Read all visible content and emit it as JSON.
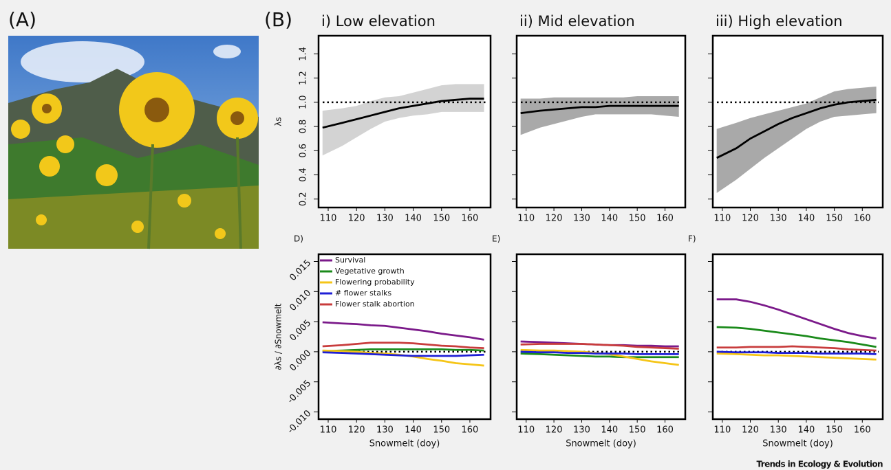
{
  "figure": {
    "label_a": "(A)",
    "label_b": "(B)",
    "credit": "Trends in Ecology & Evolution"
  },
  "chart_data": [
    {
      "type": "line",
      "title": "i) Low elevation",
      "ylabel": "λs",
      "x": [
        108,
        115,
        120,
        125,
        130,
        135,
        140,
        145,
        150,
        155,
        160,
        165
      ],
      "series": [
        {
          "color": "#000000",
          "values": [
            0.79,
            0.83,
            0.86,
            0.89,
            0.92,
            0.95,
            0.97,
            0.99,
            1.01,
            1.02,
            1.03,
            1.03
          ]
        }
      ],
      "band": {
        "color": "#d3d3d3",
        "lower": [
          0.56,
          0.64,
          0.71,
          0.78,
          0.84,
          0.87,
          0.89,
          0.9,
          0.92,
          0.92,
          0.92,
          0.92
        ],
        "upper": [
          0.93,
          0.95,
          0.97,
          1.01,
          1.04,
          1.05,
          1.08,
          1.11,
          1.14,
          1.15,
          1.15,
          1.15
        ]
      },
      "reference": 1,
      "xlim": [
        106.6,
        167.3
      ],
      "xticks": [
        110,
        120,
        130,
        140,
        150,
        160
      ],
      "ylim": [
        0.13,
        1.55
      ],
      "yticks": [
        0.2,
        0.4,
        0.6,
        0.8,
        {
          "value": 1,
          "label": "1.0"
        },
        1.2,
        1.4
      ],
      "show_ytick_labels": true
    },
    {
      "type": "line",
      "title": "ii) Mid elevation",
      "x": [
        108,
        115,
        120,
        125,
        130,
        135,
        140,
        145,
        150,
        155,
        160,
        165
      ],
      "series": [
        {
          "color": "#000000",
          "values": [
            0.91,
            0.93,
            0.94,
            0.95,
            0.96,
            0.96,
            0.97,
            0.97,
            0.97,
            0.97,
            0.97,
            0.97
          ]
        }
      ],
      "band": {
        "color": "#a9a9a9",
        "lower": [
          0.73,
          0.79,
          0.82,
          0.85,
          0.88,
          0.9,
          0.9,
          0.9,
          0.9,
          0.9,
          0.89,
          0.88
        ],
        "upper": [
          1.03,
          1.03,
          1.04,
          1.04,
          1.04,
          1.04,
          1.04,
          1.04,
          1.05,
          1.05,
          1.05,
          1.05
        ]
      },
      "reference": 1,
      "xlim": [
        106.6,
        167.3
      ],
      "xticks": [
        110,
        120,
        130,
        140,
        150,
        160
      ],
      "ylim": [
        0.13,
        1.55
      ],
      "yticks": [
        0.2,
        0.4,
        0.6,
        0.8,
        {
          "value": 1,
          "label": "1.0"
        },
        1.2,
        1.4
      ],
      "show_ytick_labels": false
    },
    {
      "type": "line",
      "title": "iii) High elevation",
      "x": [
        108,
        115,
        120,
        125,
        130,
        135,
        140,
        145,
        150,
        155,
        160,
        165
      ],
      "series": [
        {
          "color": "#000000",
          "values": [
            0.54,
            0.62,
            0.7,
            0.76,
            0.82,
            0.87,
            0.91,
            0.95,
            0.98,
            1.0,
            1.01,
            1.02
          ]
        }
      ],
      "band": {
        "color": "#a9a9a9",
        "lower": [
          0.25,
          0.36,
          0.45,
          0.54,
          0.62,
          0.7,
          0.78,
          0.84,
          0.88,
          0.89,
          0.9,
          0.91
        ],
        "upper": [
          0.78,
          0.83,
          0.87,
          0.9,
          0.93,
          0.96,
          0.99,
          1.04,
          1.09,
          1.11,
          1.12,
          1.13
        ]
      },
      "reference": 1,
      "xlim": [
        106.6,
        167.3
      ],
      "xticks": [
        110,
        120,
        130,
        140,
        150,
        160
      ],
      "ylim": [
        0.13,
        1.55
      ],
      "yticks": [
        0.2,
        0.4,
        0.6,
        0.8,
        {
          "value": 1,
          "label": "1.0"
        },
        1.2,
        1.4
      ],
      "show_ytick_labels": false
    },
    {
      "type": "line",
      "panel_label": "D)",
      "ylabel": "∂λs / ∂Snowmelt",
      "xlabel": "Snowmelt (doy)",
      "legend": "top-left",
      "x": [
        108,
        115,
        120,
        125,
        130,
        135,
        140,
        145,
        150,
        155,
        160,
        165
      ],
      "series": [
        {
          "name": "Survival",
          "color": "#7b1a8a",
          "values": [
            0.0049,
            0.0047,
            0.0046,
            0.0044,
            0.0043,
            0.004,
            0.0037,
            0.0034,
            0.003,
            0.0027,
            0.0024,
            0.002
          ]
        },
        {
          "name": "Vegetative growth",
          "color": "#1a8a1a",
          "values": [
            0.0001,
            0.0002,
            0.0003,
            0.0004,
            0.0004,
            0.0004,
            0.0004,
            0.0004,
            0.0004,
            0.0003,
            0.0003,
            0.0002
          ]
        },
        {
          "name": "Flowering probability",
          "color": "#f5c518",
          "values": [
            0.0002,
            0.0001,
            0.0,
            -0.0002,
            -0.0003,
            -0.0005,
            -0.0008,
            -0.0012,
            -0.0015,
            -0.0019,
            -0.0021,
            -0.0023
          ]
        },
        {
          "name": "# flower stalks",
          "color": "#1f1fd6",
          "values": [
            -0.0001,
            -0.0002,
            -0.0003,
            -0.0004,
            -0.0005,
            -0.0006,
            -0.0007,
            -0.0007,
            -0.0007,
            -0.0007,
            -0.0006,
            -0.0005
          ]
        },
        {
          "name": "Flower stalk abortion",
          "color": "#c83c3c",
          "values": [
            0.0009,
            0.0011,
            0.0013,
            0.0015,
            0.0015,
            0.0015,
            0.0014,
            0.0012,
            0.001,
            0.0009,
            0.0007,
            0.0006
          ]
        }
      ],
      "reference": 0,
      "xlim": [
        106.6,
        167.3
      ],
      "xticks": [
        110,
        120,
        130,
        140,
        150,
        160
      ],
      "ylim": [
        -0.0112,
        0.0162
      ],
      "yticks": [
        {
          "value": -0.01,
          "label": "-0.010"
        },
        {
          "value": -0.005,
          "label": "-0.005"
        },
        {
          "value": 0,
          "label": "0.000"
        },
        {
          "value": 0.005,
          "label": "0.005"
        },
        {
          "value": 0.01,
          "label": "0.010"
        },
        {
          "value": 0.015,
          "label": "0.015"
        }
      ],
      "show_ytick_labels": true
    },
    {
      "type": "line",
      "panel_label": "E)",
      "xlabel": "Snowmelt (doy)",
      "legend": false,
      "x": [
        108,
        115,
        120,
        125,
        130,
        135,
        140,
        145,
        150,
        155,
        160,
        165
      ],
      "series": [
        {
          "name": "Survival",
          "color": "#7b1a8a",
          "values": [
            0.0017,
            0.0016,
            0.0015,
            0.0014,
            0.0013,
            0.0012,
            0.0011,
            0.0011,
            0.001,
            0.001,
            0.0009,
            0.0009
          ]
        },
        {
          "name": "Vegetative growth",
          "color": "#1a8a1a",
          "values": [
            -0.0003,
            -0.0004,
            -0.0005,
            -0.0006,
            -0.0007,
            -0.0008,
            -0.0008,
            -0.0009,
            -0.0009,
            -0.0009,
            -0.0009,
            -0.0009
          ]
        },
        {
          "name": "Flowering probability",
          "color": "#f5c518",
          "values": [
            0.0003,
            0.0002,
            0.0002,
            0.0001,
            0.0,
            -0.0002,
            -0.0004,
            -0.0008,
            -0.0012,
            -0.0016,
            -0.0019,
            -0.0022
          ]
        },
        {
          "name": "# flower stalks",
          "color": "#1f1fd6",
          "values": [
            0.0,
            -0.0001,
            -0.0001,
            -0.0002,
            -0.0002,
            -0.0003,
            -0.0003,
            -0.0003,
            -0.0004,
            -0.0004,
            -0.0004,
            -0.0004
          ]
        },
        {
          "name": "Flower stalk abortion",
          "color": "#c83c3c",
          "values": [
            0.0012,
            0.0013,
            0.0013,
            0.0013,
            0.0013,
            0.0012,
            0.0011,
            0.001,
            0.0008,
            0.0007,
            0.0006,
            0.0005
          ]
        }
      ],
      "reference": 0,
      "xlim": [
        106.6,
        167.3
      ],
      "xticks": [
        110,
        120,
        130,
        140,
        150,
        160
      ],
      "ylim": [
        -0.0112,
        0.0162
      ],
      "yticks": [
        {
          "value": -0.01,
          "label": "-0.010"
        },
        {
          "value": -0.005,
          "label": "-0.005"
        },
        {
          "value": 0,
          "label": "0.000"
        },
        {
          "value": 0.005,
          "label": "0.005"
        },
        {
          "value": 0.01,
          "label": "0.010"
        },
        {
          "value": 0.015,
          "label": "0.015"
        }
      ],
      "show_ytick_labels": false
    },
    {
      "type": "line",
      "panel_label": "F)",
      "xlabel": "Snowmelt (doy)",
      "legend": false,
      "x": [
        108,
        115,
        120,
        125,
        130,
        135,
        140,
        145,
        150,
        155,
        160,
        165
      ],
      "series": [
        {
          "name": "Survival",
          "color": "#7b1a8a",
          "values": [
            0.0087,
            0.0087,
            0.0083,
            0.0077,
            0.007,
            0.0062,
            0.0054,
            0.0046,
            0.0038,
            0.0031,
            0.0026,
            0.0022
          ]
        },
        {
          "name": "Vegetative growth",
          "color": "#1a8a1a",
          "values": [
            0.0041,
            0.004,
            0.0038,
            0.0035,
            0.0032,
            0.0029,
            0.0026,
            0.0022,
            0.0019,
            0.0016,
            0.0012,
            0.0008
          ]
        },
        {
          "name": "Flowering probability",
          "color": "#f5c518",
          "values": [
            -0.0003,
            -0.0004,
            -0.0005,
            -0.0006,
            -0.0006,
            -0.0007,
            -0.0008,
            -0.0009,
            -0.001,
            -0.0011,
            -0.0012,
            -0.0013
          ]
        },
        {
          "name": "# flower stalks",
          "color": "#1f1fd6",
          "values": [
            0.0,
            -0.0001,
            -0.0001,
            -0.0001,
            -0.0002,
            -0.0002,
            -0.0002,
            -0.0003,
            -0.0003,
            -0.0003,
            -0.0003,
            -0.0004
          ]
        },
        {
          "name": "Flower stalk abortion",
          "color": "#c83c3c",
          "values": [
            0.0007,
            0.0007,
            0.0008,
            0.0008,
            0.0008,
            0.0009,
            0.0008,
            0.0007,
            0.0006,
            0.0004,
            0.0003,
            0.0002
          ]
        }
      ],
      "reference": 0,
      "xlim": [
        106.6,
        167.3
      ],
      "xticks": [
        110,
        120,
        130,
        140,
        150,
        160
      ],
      "ylim": [
        -0.0112,
        0.0162
      ],
      "yticks": [
        {
          "value": -0.01,
          "label": "-0.010"
        },
        {
          "value": -0.005,
          "label": "-0.005"
        },
        {
          "value": 0,
          "label": "0.000"
        },
        {
          "value": 0.005,
          "label": "0.005"
        },
        {
          "value": 0.01,
          "label": "0.010"
        },
        {
          "value": 0.015,
          "label": "0.015"
        }
      ],
      "show_ytick_labels": false
    }
  ]
}
